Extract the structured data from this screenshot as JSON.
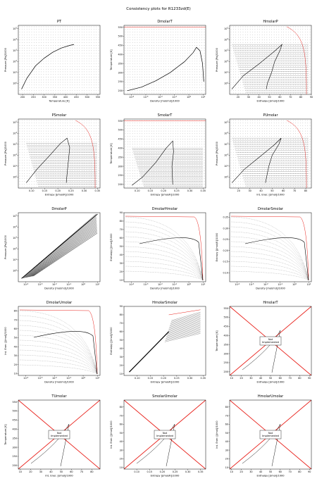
{
  "figure": {
    "title": "Consistency plots for R1233zd(E)"
  },
  "style": {
    "frame": "#000000",
    "line_color": "#000000",
    "red": "#e8201a",
    "grid_dot": "#555555"
  },
  "chart_data": [
    {
      "id": "PT",
      "type": "scatter",
      "title": "PT",
      "xlabel": "Temperature [K]",
      "ylabel": "Pressure [Pa]/1000",
      "xlim": [
        180,
        560
      ],
      "ylog": true,
      "ylim": [
        0.1,
        200000
      ],
      "xticks": [
        "200",
        "250",
        "300",
        "350",
        "400",
        "450",
        "500",
        "550"
      ],
      "yticks": [
        "10^0",
        "10^1",
        "10^2",
        "10^3",
        "10^4",
        "10^5"
      ],
      "points_grid": true,
      "saturation_curve": {
        "x": [
          195,
          220,
          260,
          300,
          340,
          380,
          420,
          439
        ],
        "y": [
          0.3,
          3,
          40,
          200,
          700,
          1700,
          3000,
          3620
        ]
      }
    },
    {
      "id": "DmolarT",
      "type": "scatter",
      "title": "DmolarT",
      "xlabel": "Density [mol/m3]/1000",
      "ylabel": "Temperature [K]",
      "xlog": true,
      "xlim": [
        3e-05,
        15
      ],
      "ylim": [
        180,
        560
      ],
      "xticks": [
        "10^-4",
        "10^-3",
        "10^-2",
        "10^-1",
        "10^0",
        "10^1"
      ],
      "yticks": [
        "200",
        "250",
        "300",
        "350",
        "400",
        "450",
        "500",
        "550"
      ],
      "points_grid": true,
      "red_line": {
        "y": 550
      },
      "saturation_curve": {
        "x": [
          5e-05,
          0.0005,
          0.005,
          0.05,
          0.5,
          2,
          3.4,
          6,
          9,
          11
        ],
        "y": [
          200,
          220,
          255,
          300,
          360,
          410,
          439,
          420,
          350,
          250
        ]
      }
    },
    {
      "id": "HmolarP",
      "type": "scatter",
      "title": "HmolarP",
      "xlabel": "Enthalpy [J/mol]/1000",
      "ylabel": "Pressure [Pa]/1000",
      "xlim": [
        12,
        90
      ],
      "ylog": true,
      "ylim": [
        0.1,
        200000
      ],
      "xticks": [
        "20",
        "30",
        "40",
        "50",
        "60",
        "70",
        "80",
        "90"
      ],
      "yticks": [
        "10^0",
        "10^1",
        "10^2",
        "10^3",
        "10^4",
        "10^5"
      ],
      "points_grid": true,
      "red_edge": true,
      "dome": {
        "x": [
          14,
          25,
          40,
          55,
          62,
          60,
          55,
          52,
          48,
          47
        ],
        "y": [
          0.3,
          5,
          60,
          900,
          3600,
          1000,
          100,
          10,
          1,
          0.3
        ]
      }
    },
    {
      "id": "PSmolar",
      "type": "scatter",
      "title": "PSmolar",
      "xlabel": "Entropy [J/mol/K]/1000",
      "ylabel": "Pressure [Pa]/1000",
      "xlim": [
        0.05,
        0.36
      ],
      "ylog": true,
      "ylim": [
        0.1,
        200000
      ],
      "xticks": [
        "0.10",
        "0.15",
        "0.20",
        "0.25",
        "0.30",
        "0.35"
      ],
      "yticks": [
        "10^0",
        "10^1",
        "10^2",
        "10^3",
        "10^4",
        "10^5"
      ],
      "points_grid": true,
      "red_edge": true,
      "dome": {
        "x": [
          0.08,
          0.12,
          0.17,
          0.21,
          0.235,
          0.245,
          0.24,
          0.235,
          0.232
        ],
        "y": [
          0.3,
          5,
          100,
          1200,
          3600,
          500,
          30,
          2,
          0.3
        ]
      }
    },
    {
      "id": "SmolarT",
      "type": "scatter",
      "title": "SmolarT",
      "xlabel": "Entropy [J/mol/K]/1000",
      "ylabel": "Temperature [K]",
      "xlim": [
        0.05,
        0.36
      ],
      "ylim": [
        180,
        560
      ],
      "xticks": [
        "0.10",
        "0.15",
        "0.20",
        "0.25",
        "0.30",
        "0.35"
      ],
      "yticks": [
        "200",
        "250",
        "300",
        "350",
        "400",
        "450",
        "500",
        "550"
      ],
      "points_grid": true,
      "red_line": {
        "y": 550
      },
      "dome": {
        "x": [
          0.08,
          0.12,
          0.17,
          0.21,
          0.235,
          0.238,
          0.232,
          0.235
        ],
        "y": [
          195,
          240,
          320,
          400,
          439,
          380,
          300,
          200
        ]
      }
    },
    {
      "id": "PUmolar",
      "type": "scatter",
      "title": "PUmolar",
      "xlabel": "Int. Ener. [J/mol]/1000",
      "ylabel": "Pressure [Pa]/1000",
      "xlim": [
        12,
        85
      ],
      "ylog": true,
      "ylim": [
        0.1,
        200000
      ],
      "xticks": [
        "20",
        "30",
        "40",
        "50",
        "60",
        "70",
        "80"
      ],
      "yticks": [
        "10^0",
        "10^1",
        "10^2",
        "10^3",
        "10^4",
        "10^5"
      ],
      "points_grid": true,
      "red_edge": true,
      "dome": {
        "x": [
          14,
          25,
          38,
          52,
          58,
          56,
          50,
          47,
          45,
          44
        ],
        "y": [
          0.3,
          5,
          60,
          900,
          3600,
          1000,
          100,
          10,
          1,
          0.3
        ]
      }
    },
    {
      "id": "DmolarP",
      "type": "scatter",
      "title": "DmolarP",
      "xlabel": "Density [mol/m3]/1000",
      "ylabel": "Pressure [Pa]/1000",
      "xlog": true,
      "xlim": [
        3e-05,
        15
      ],
      "ylog": true,
      "ylim": [
        0.1,
        200000
      ],
      "xticks": [
        "10^-4",
        "10^-3",
        "10^-2",
        "10^-1",
        "10^0",
        "10^1"
      ],
      "yticks": [
        "10^0",
        "10^1",
        "10^2",
        "10^3",
        "10^4",
        "10^5"
      ],
      "diagonal_band": true
    },
    {
      "id": "DmolarHmolar",
      "type": "scatter",
      "title": "DmolarHmolar",
      "xlabel": "Density [mol/m3]/1000",
      "ylabel": "Enthalpy [J/mol]/1000",
      "xlog": true,
      "xlim": [
        3e-05,
        15
      ],
      "ylim": [
        8,
        90
      ],
      "xticks": [
        "10^-4",
        "10^-3",
        "10^-2",
        "10^-1",
        "10^0",
        "10^1"
      ],
      "yticks": [
        "10",
        "20",
        "30",
        "40",
        "50",
        "60",
        "70",
        "80",
        "90"
      ],
      "fan": true
    },
    {
      "id": "DmolarSmolar",
      "type": "scatter",
      "title": "DmolarSmolar",
      "xlabel": "Density [mol/m3]/1000",
      "ylabel": "Entropy [J/mol/K]/1000",
      "xlog": true,
      "xlim": [
        3e-05,
        15
      ],
      "ylim": [
        0.06,
        0.37
      ],
      "xticks": [
        "10^-4",
        "10^-3",
        "10^-2",
        "10^-1",
        "10^0",
        "10^1"
      ],
      "yticks": [
        "0.10",
        "0.15",
        "0.20",
        "0.25",
        "0.30",
        "0.35"
      ],
      "fan": true
    },
    {
      "id": "DmolarUmolar",
      "type": "scatter",
      "title": "DmolarUmolar",
      "xlabel": "Density [mol/m3]/1000",
      "ylabel": "Int. Ener. [J/mol]/1000",
      "xlog": true,
      "xlim": [
        3e-05,
        15
      ],
      "ylim": [
        8,
        85
      ],
      "xticks": [
        "10^-4",
        "10^-3",
        "10^-2",
        "10^-1",
        "10^0",
        "10^1"
      ],
      "yticks": [
        "10",
        "20",
        "30",
        "40",
        "50",
        "60",
        "70",
        "80"
      ],
      "fan": true
    },
    {
      "id": "HmolarSmolar",
      "type": "scatter",
      "title": "HmolarSmolar",
      "xlabel": "Entropy [J/mol/K]/1000",
      "ylabel": "Enthalpy [J/mol]/1000",
      "xlim": [
        0.05,
        0.36
      ],
      "ylim": [
        8,
        90
      ],
      "xticks": [
        "0.10",
        "0.15",
        "0.20",
        "0.25",
        "0.30",
        "0.35"
      ],
      "yticks": [
        "10",
        "20",
        "30",
        "40",
        "50",
        "60",
        "70",
        "80",
        "90"
      ],
      "hs_band": true
    },
    {
      "id": "HmolarT",
      "type": "line",
      "title": "HmolarT",
      "xlabel": "Enthalpy [J/mol]/1000",
      "ylabel": "Temperature [K]",
      "xlim": [
        8,
        92
      ],
      "ylim": [
        180,
        560
      ],
      "xticks": [
        "10",
        "20",
        "30",
        "40",
        "50",
        "60",
        "70",
        "80",
        "90"
      ],
      "yticks": [
        "200",
        "250",
        "300",
        "350",
        "400",
        "450",
        "500",
        "550"
      ],
      "not_implemented": "Not\nImplemented"
    },
    {
      "id": "TUmolar",
      "type": "line",
      "title": "TUmolar",
      "xlabel": "Int. Ener. [J/mol]/1000",
      "ylabel": "Temperature [K]",
      "xlim": [
        8,
        88
      ],
      "ylim": [
        180,
        560
      ],
      "xticks": [
        "10",
        "20",
        "30",
        "40",
        "50",
        "60",
        "70",
        "80"
      ],
      "yticks": [
        "200",
        "250",
        "300",
        "350",
        "400",
        "450",
        "500",
        "550"
      ],
      "not_implemented": "Not\nImplemented"
    },
    {
      "id": "SmolarUmolar",
      "type": "line",
      "title": "SmolarUmolar",
      "xlabel": "Entropy [J/mol/K]/1000",
      "ylabel": "Int. Ener. [J/mol]/1000",
      "xlim": [
        0.05,
        0.37
      ],
      "ylim": [
        8,
        88
      ],
      "xticks": [
        "0.10",
        "0.15",
        "0.20",
        "0.25",
        "0.30",
        "0.35"
      ],
      "yticks": [
        "10",
        "20",
        "30",
        "40",
        "50",
        "60",
        "70",
        "80"
      ],
      "not_implemented": "Not\nImplemented"
    },
    {
      "id": "HmolarUmolar",
      "type": "line",
      "title": "HmolarUmolar",
      "xlabel": "Enthalpy [J/mol]/1000",
      "ylabel": "Int. Ener. [J/mol]/1000",
      "xlim": [
        8,
        92
      ],
      "ylim": [
        8,
        88
      ],
      "xticks": [
        "10",
        "20",
        "30",
        "40",
        "50",
        "60",
        "70",
        "80",
        "90"
      ],
      "yticks": [
        "10",
        "20",
        "30",
        "40",
        "50",
        "60",
        "70",
        "80"
      ],
      "not_implemented": "Not\nImplemented"
    }
  ]
}
